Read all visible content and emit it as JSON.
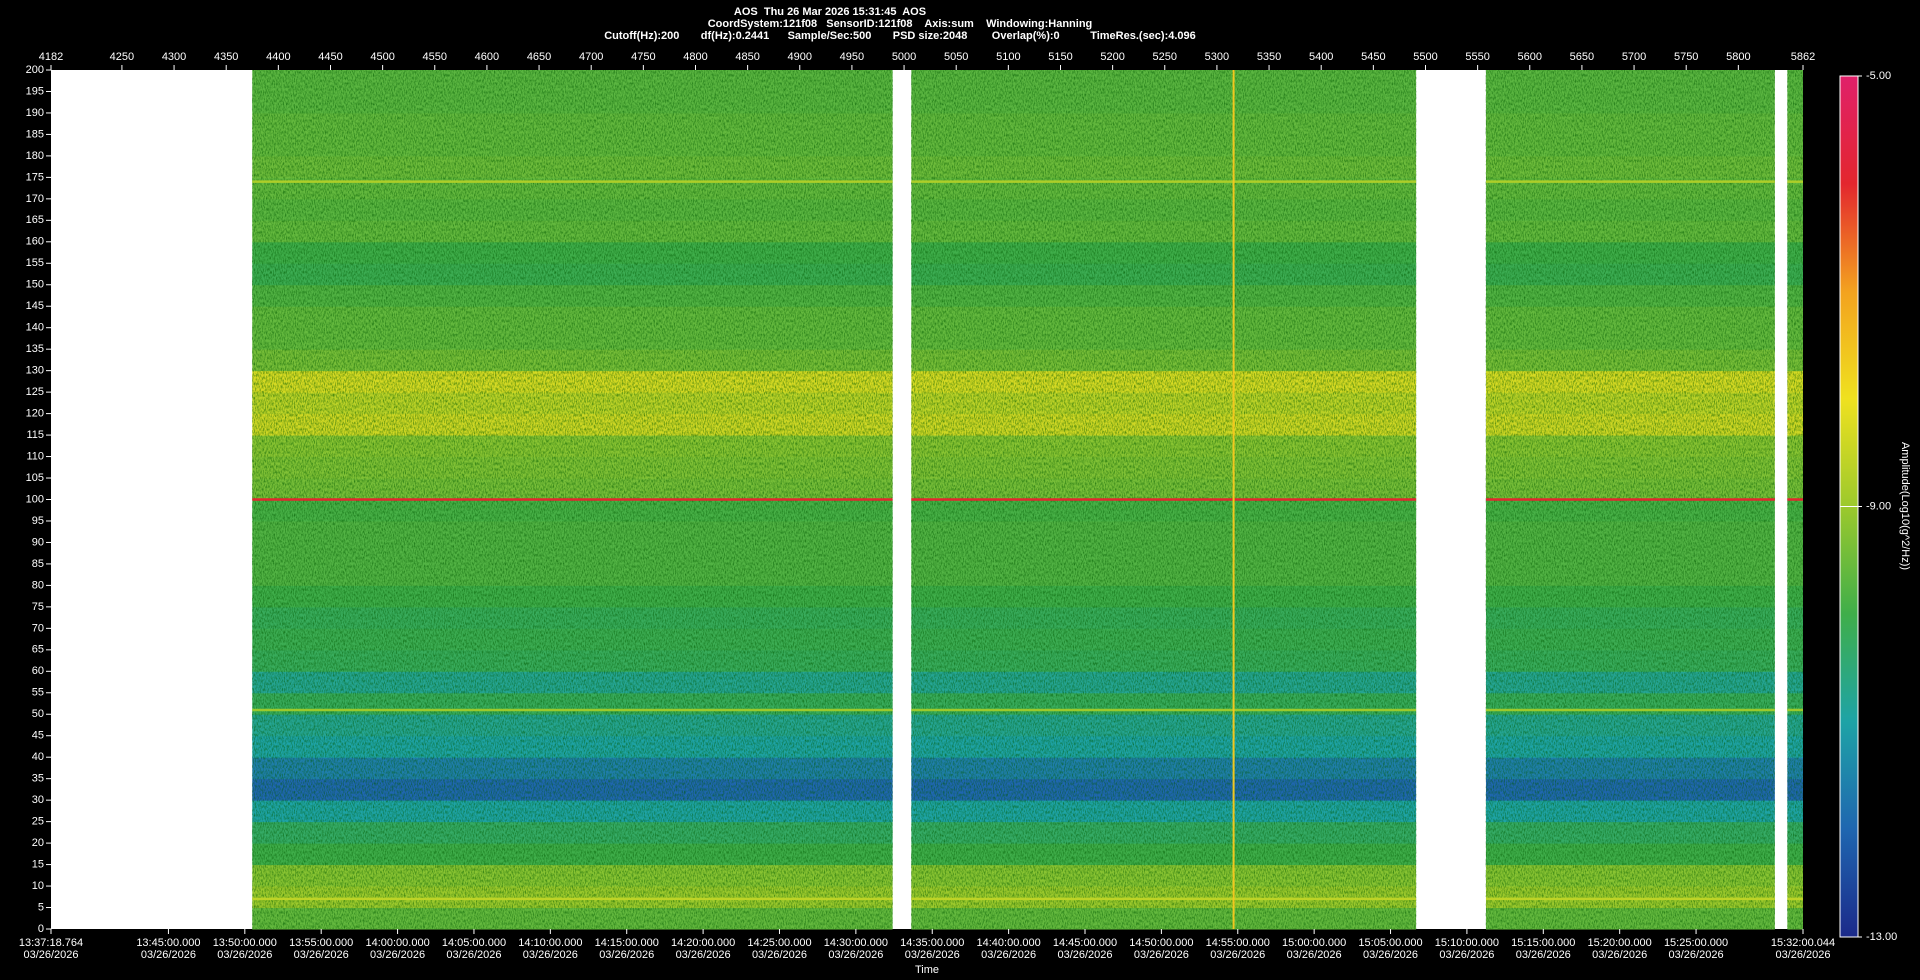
{
  "chart_data": {
    "type": "spectrogram",
    "title": "AOS  Thu 26 Mar 2026 15:31:45  AOS",
    "subtitle": [
      "CoordSystem:121f08   SensorID:121f08    Axis:sum    Windowing:Hanning",
      "Cutoff(Hz):200       df(Hz):0.2441      Sample/Sec:500       PSD size:2048        Overlap(%):0          TimeRes.(sec):4.096"
    ],
    "x_label": "Time",
    "colorbar_label": "Amplitude(Log10(g^2/Hz))",
    "xlim": [
      "2026-03-26T13:37:18.764",
      "2026-03-26T15:32:00.044"
    ],
    "xticks": [
      {
        "value": "2026-03-26T13:37:18.764",
        "label": [
          "13:37:18.764",
          "03/26/2026"
        ]
      },
      {
        "value": "2026-03-26T13:45:00.000",
        "label": [
          "13:45:00.000",
          "03/26/2026"
        ]
      },
      {
        "value": "2026-03-26T13:50:00.000",
        "label": [
          "13:50:00.000",
          "03/26/2026"
        ]
      },
      {
        "value": "2026-03-26T13:55:00.000",
        "label": [
          "13:55:00.000",
          "03/26/2026"
        ]
      },
      {
        "value": "2026-03-26T14:00:00.000",
        "label": [
          "14:00:00.000",
          "03/26/2026"
        ]
      },
      {
        "value": "2026-03-26T14:05:00.000",
        "label": [
          "14:05:00.000",
          "03/26/2026"
        ]
      },
      {
        "value": "2026-03-26T14:10:00.000",
        "label": [
          "14:10:00.000",
          "03/26/2026"
        ]
      },
      {
        "value": "2026-03-26T14:15:00.000",
        "label": [
          "14:15:00.000",
          "03/26/2026"
        ]
      },
      {
        "value": "2026-03-26T14:20:00.000",
        "label": [
          "14:20:00.000",
          "03/26/2026"
        ]
      },
      {
        "value": "2026-03-26T14:25:00.000",
        "label": [
          "14:25:00.000",
          "03/26/2026"
        ]
      },
      {
        "value": "2026-03-26T14:30:00.000",
        "label": [
          "14:30:00.000",
          "03/26/2026"
        ]
      },
      {
        "value": "2026-03-26T14:35:00.000",
        "label": [
          "14:35:00.000",
          "03/26/2026"
        ]
      },
      {
        "value": "2026-03-26T14:40:00.000",
        "label": [
          "14:40:00.000",
          "03/26/2026"
        ]
      },
      {
        "value": "2026-03-26T14:45:00.000",
        "label": [
          "14:45:00.000",
          "03/26/2026"
        ]
      },
      {
        "value": "2026-03-26T14:50:00.000",
        "label": [
          "14:50:00.000",
          "03/26/2026"
        ]
      },
      {
        "value": "2026-03-26T14:55:00.000",
        "label": [
          "14:55:00.000",
          "03/26/2026"
        ]
      },
      {
        "value": "2026-03-26T15:00:00.000",
        "label": [
          "15:00:00.000",
          "03/26/2026"
        ]
      },
      {
        "value": "2026-03-26T15:05:00.000",
        "label": [
          "15:05:00.000",
          "03/26/2026"
        ]
      },
      {
        "value": "2026-03-26T15:10:00.000",
        "label": [
          "15:10:00.000",
          "03/26/2026"
        ]
      },
      {
        "value": "2026-03-26T15:15:00.000",
        "label": [
          "15:15:00.000",
          "03/26/2026"
        ]
      },
      {
        "value": "2026-03-26T15:20:00.000",
        "label": [
          "15:20:00.000",
          "03/26/2026"
        ]
      },
      {
        "value": "2026-03-26T15:25:00.000",
        "label": [
          "15:25:00.000",
          "03/26/2026"
        ]
      },
      {
        "value": "2026-03-26T15:32:00.044",
        "label": [
          "15:32:00.044",
          "03/26/2026"
        ]
      }
    ],
    "x2lim": [
      4182,
      5862
    ],
    "x2ticks": [
      4182,
      4250,
      4300,
      4350,
      4400,
      4450,
      4500,
      4550,
      4600,
      4650,
      4700,
      4750,
      4800,
      4850,
      4900,
      4950,
      5000,
      5050,
      5100,
      5150,
      5200,
      5250,
      5300,
      5350,
      5400,
      5450,
      5500,
      5550,
      5600,
      5650,
      5700,
      5750,
      5800,
      5862
    ],
    "ylim": [
      0,
      200
    ],
    "yticks": [
      0,
      5,
      10,
      15,
      20,
      25,
      30,
      35,
      40,
      45,
      50,
      55,
      60,
      65,
      70,
      75,
      80,
      85,
      90,
      95,
      100,
      105,
      110,
      115,
      120,
      125,
      130,
      135,
      140,
      145,
      150,
      155,
      160,
      165,
      170,
      175,
      180,
      185,
      190,
      195,
      200
    ],
    "clim": [
      -13,
      -5
    ],
    "cticks": [
      {
        "value": -5,
        "label": "-5.00"
      },
      {
        "value": -9,
        "label": "-9.00"
      },
      {
        "value": -13,
        "label": "-13.00"
      }
    ],
    "colormap": [
      "#1b2a8a",
      "#1f66b0",
      "#1ea3a6",
      "#3fae4a",
      "#9cc92c",
      "#efe11f",
      "#f3a21f",
      "#e3262e",
      "#e0206a"
    ],
    "segments": [
      [
        4375,
        4989
      ],
      [
        5007,
        5491
      ],
      [
        5558,
        5835
      ],
      [
        5847,
        5862
      ]
    ],
    "freq_bins": [
      0,
      5,
      10,
      15,
      20,
      25,
      30,
      35,
      40,
      45,
      50,
      55,
      60,
      65,
      70,
      75,
      80,
      85,
      90,
      95,
      100,
      105,
      110,
      115,
      120,
      125,
      130,
      135,
      140,
      145,
      150,
      155,
      160,
      165,
      170,
      175,
      180,
      185,
      190,
      195,
      200
    ],
    "amplitude": [
      -9.6,
      -9.0,
      -9.2,
      -10.0,
      -10.3,
      -11.0,
      -12.0,
      -11.6,
      -11.0,
      -10.8,
      -10.2,
      -10.8,
      -10.2,
      -10.1,
      -10.2,
      -10.0,
      -9.8,
      -9.8,
      -9.8,
      -9.9,
      -9.4,
      -9.3,
      -9.2,
      -8.4,
      -8.6,
      -8.3,
      -9.4,
      -9.6,
      -9.6,
      -9.8,
      -10.1,
      -10.0,
      -9.6,
      -9.7,
      -9.6,
      -9.5,
      -9.6,
      -9.6,
      -9.7,
      -9.7
    ],
    "lines": [
      {
        "freq": 100,
        "amplitude": -6.0
      },
      {
        "freq": 51,
        "amplitude": -9.0
      },
      {
        "freq": 174,
        "amplitude": -8.8
      },
      {
        "freq": 7,
        "amplitude": -8.6
      }
    ],
    "events": [
      {
        "index": 5316,
        "amplitude": -7.6
      }
    ]
  }
}
